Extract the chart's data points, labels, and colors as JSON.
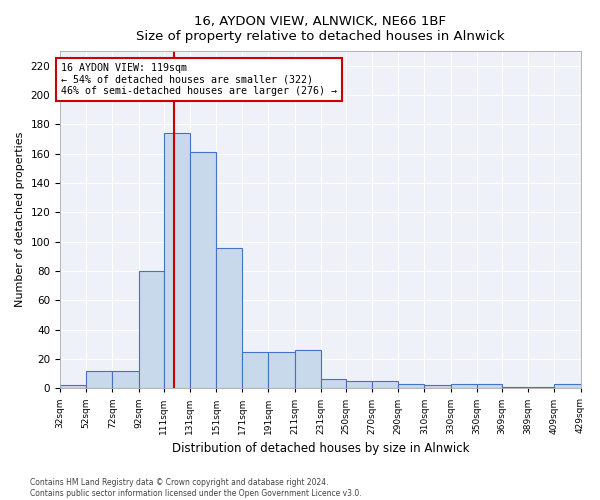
{
  "title1": "16, AYDON VIEW, ALNWICK, NE66 1BF",
  "title2": "Size of property relative to detached houses in Alnwick",
  "xlabel": "Distribution of detached houses by size in Alnwick",
  "ylabel": "Number of detached properties",
  "bins": [
    32,
    52,
    72,
    92,
    111,
    131,
    151,
    171,
    191,
    211,
    231,
    250,
    270,
    290,
    310,
    330,
    350,
    369,
    389,
    409,
    429
  ],
  "counts": [
    2,
    12,
    12,
    80,
    174,
    161,
    96,
    25,
    25,
    26,
    6,
    5,
    5,
    3,
    2,
    3,
    3,
    1,
    1,
    3
  ],
  "bar_color": "#c9d9ec",
  "bar_edge_color": "#4472c4",
  "vline_x": 119,
  "vline_color": "#cc0000",
  "annotation_line1": "16 AYDON VIEW: 119sqm",
  "annotation_line2": "← 54% of detached houses are smaller (322)",
  "annotation_line3": "46% of semi-detached houses are larger (276) →",
  "annotation_box_color": "#ffffff",
  "annotation_box_edge": "#cc0000",
  "ylim": [
    0,
    230
  ],
  "yticks": [
    0,
    20,
    40,
    60,
    80,
    100,
    120,
    140,
    160,
    180,
    200,
    220
  ],
  "background_color": "#eef2f8",
  "footer1": "Contains HM Land Registry data © Crown copyright and database right 2024.",
  "footer2": "Contains public sector information licensed under the Open Government Licence v3.0."
}
